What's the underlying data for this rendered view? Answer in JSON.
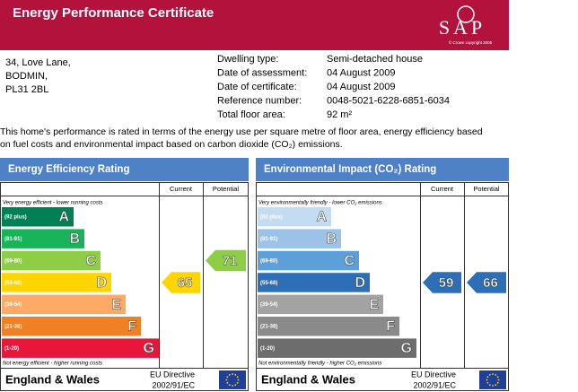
{
  "header": {
    "title": "Energy Performance Certificate",
    "logo": "SAP",
    "copyright": "© Crown copyright 2005"
  },
  "address": [
    "34, Love Lane,",
    "BODMIN,",
    "PL31 2BL"
  ],
  "details": [
    [
      "Dwelling type:",
      "Semi-detached house"
    ],
    [
      "Date of assessment:",
      "04 August 2009"
    ],
    [
      "Date of certificate:",
      "04 August 2009"
    ],
    [
      "Reference number:",
      "0048-5021-6228-6851-6034"
    ],
    [
      "Total floor area:",
      "92 m²"
    ]
  ],
  "intro": [
    "This home's performance is rated in terms of the energy use per square metre of floor area, energy efficiency based",
    "on fuel costs and environmental impact based on carbon dioxide (CO₂) emissions."
  ],
  "ratings": [
    {
      "title": "Energy Efficiency Rating",
      "columns": [
        "Current",
        "Potential"
      ],
      "top_note": "Very energy efficient - lower running costs",
      "bottom_note": "Not energy efficient - higher running costs",
      "bands": [
        {
          "range": "(92 plus)",
          "letter": "A",
          "color": "#008054"
        },
        {
          "range": "(81-91)",
          "letter": "B",
          "color": "#19b459"
        },
        {
          "range": "(69-80)",
          "letter": "C",
          "color": "#8dce46"
        },
        {
          "range": "(55-68)",
          "letter": "D",
          "color": "#ffd500"
        },
        {
          "range": "(39-54)",
          "letter": "E",
          "color": "#fcaa65"
        },
        {
          "range": "(21-38)",
          "letter": "F",
          "color": "#ef8023"
        },
        {
          "range": "(1-20)",
          "letter": "G",
          "color": "#e9153b"
        }
      ],
      "current": 65,
      "potential": 71,
      "region": "England & Wales",
      "directive": [
        "EU Directive",
        "2002/91/EC"
      ]
    },
    {
      "title": "Environmental Impact (CO₂) Rating",
      "columns": [
        "Current",
        "Potential"
      ],
      "top_note": "Very environmentally friendly - lower CO₂ emissions",
      "bottom_note": "Not environmentally friendly - higher CO₂ emissions",
      "bands": [
        {
          "range": "(92 plus)",
          "letter": "A",
          "color": "#c4dcf2"
        },
        {
          "range": "(81-91)",
          "letter": "B",
          "color": "#9cc3e7"
        },
        {
          "range": "(69-80)",
          "letter": "C",
          "color": "#5d9fd8"
        },
        {
          "range": "(55-68)",
          "letter": "D",
          "color": "#2d6fb6"
        },
        {
          "range": "(39-54)",
          "letter": "E",
          "color": "#a3a3a3"
        },
        {
          "range": "(21-38)",
          "letter": "F",
          "color": "#8a8a8a"
        },
        {
          "range": "(1-20)",
          "letter": "G",
          "color": "#6d6d6d"
        }
      ],
      "current": 59,
      "potential": 66,
      "region": "England & Wales",
      "directive": [
        "EU Directive",
        "2002/91/EC"
      ]
    }
  ]
}
